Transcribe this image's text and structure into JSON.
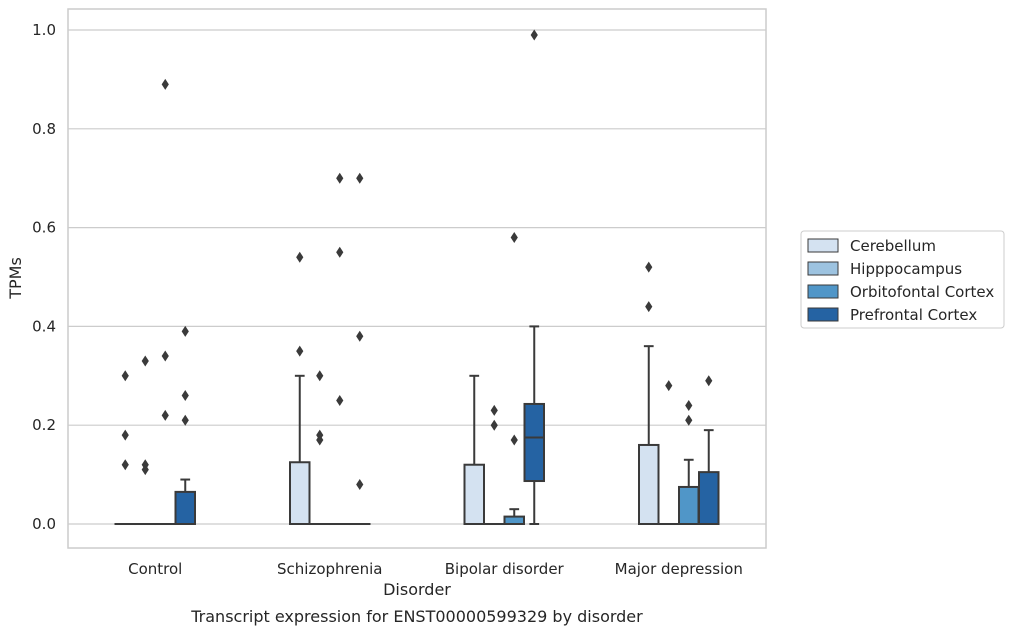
{
  "chart_data": {
    "type": "box",
    "xlabel": "Disorder",
    "ylabel": "TPMs",
    "caption": "Transcript expression for ENST00000599329 by disorder",
    "ylim": [
      -0.05,
      1.04
    ],
    "yticks": [
      0.0,
      0.2,
      0.4,
      0.6,
      0.8,
      1.0
    ],
    "ytick_labels": [
      "0.0",
      "0.2",
      "0.4",
      "0.6",
      "0.8",
      "1.0"
    ],
    "grid": "horizontal",
    "legend_position": "right",
    "categories": [
      "Control",
      "Schizophrenia",
      "Bipolar disorder",
      "Major depression"
    ],
    "series": [
      {
        "name": "Cerebellum",
        "color": "#d4e2f1",
        "boxes": [
          {
            "min": 0.0,
            "q1": 0.0,
            "median": 0.0,
            "q3": 0.0,
            "max": 0.0,
            "outliers": [
              0.3,
              0.18,
              0.12
            ]
          },
          {
            "min": 0.0,
            "q1": 0.0,
            "median": 0.0,
            "q3": 0.125,
            "max": 0.3,
            "outliers": [
              0.54,
              0.35
            ]
          },
          {
            "min": 0.0,
            "q1": 0.0,
            "median": 0.0,
            "q3": 0.12,
            "max": 0.3,
            "outliers": []
          },
          {
            "min": 0.0,
            "q1": 0.0,
            "median": 0.0,
            "q3": 0.16,
            "max": 0.36,
            "outliers": [
              0.52,
              0.44
            ]
          }
        ]
      },
      {
        "name": "Hipppocampus",
        "color": "#9dc3e0",
        "boxes": [
          {
            "min": 0.0,
            "q1": 0.0,
            "median": 0.0,
            "q3": 0.0,
            "max": 0.0,
            "outliers": [
              0.33,
              0.12,
              0.11
            ]
          },
          {
            "min": 0.0,
            "q1": 0.0,
            "median": 0.0,
            "q3": 0.0,
            "max": 0.0,
            "outliers": [
              0.3,
              0.18,
              0.17
            ]
          },
          {
            "min": 0.0,
            "q1": 0.0,
            "median": 0.0,
            "q3": 0.0,
            "max": 0.0,
            "outliers": [
              0.23,
              0.2
            ]
          },
          {
            "min": 0.0,
            "q1": 0.0,
            "median": 0.0,
            "q3": 0.0,
            "max": 0.0,
            "outliers": [
              0.28
            ]
          }
        ]
      },
      {
        "name": "Orbitofontal Cortex",
        "color": "#5096c8",
        "boxes": [
          {
            "min": 0.0,
            "q1": 0.0,
            "median": 0.0,
            "q3": 0.0,
            "max": 0.0,
            "outliers": [
              0.89,
              0.34,
              0.22
            ]
          },
          {
            "min": 0.0,
            "q1": 0.0,
            "median": 0.0,
            "q3": 0.0,
            "max": 0.0,
            "outliers": [
              0.7,
              0.55,
              0.25
            ]
          },
          {
            "min": 0.0,
            "q1": 0.0,
            "median": 0.0,
            "q3": 0.015,
            "max": 0.03,
            "outliers": [
              0.58,
              0.17
            ]
          },
          {
            "min": 0.0,
            "q1": 0.0,
            "median": 0.0,
            "q3": 0.075,
            "max": 0.13,
            "outliers": [
              0.24,
              0.21
            ]
          }
        ]
      },
      {
        "name": "Prefrontal Cortex",
        "color": "#2563a3",
        "boxes": [
          {
            "min": 0.0,
            "q1": 0.0,
            "median": 0.0,
            "q3": 0.065,
            "max": 0.09,
            "outliers": [
              0.39,
              0.26,
              0.21
            ]
          },
          {
            "min": 0.0,
            "q1": 0.0,
            "median": 0.0,
            "q3": 0.0,
            "max": 0.0,
            "outliers": [
              0.7,
              0.38,
              0.08
            ]
          },
          {
            "min": 0.0,
            "q1": 0.087,
            "median": 0.175,
            "q3": 0.243,
            "max": 0.4,
            "outliers": [
              0.99
            ]
          },
          {
            "min": 0.0,
            "q1": 0.0,
            "median": 0.0,
            "q3": 0.105,
            "max": 0.19,
            "outliers": [
              0.29
            ]
          }
        ]
      }
    ]
  }
}
